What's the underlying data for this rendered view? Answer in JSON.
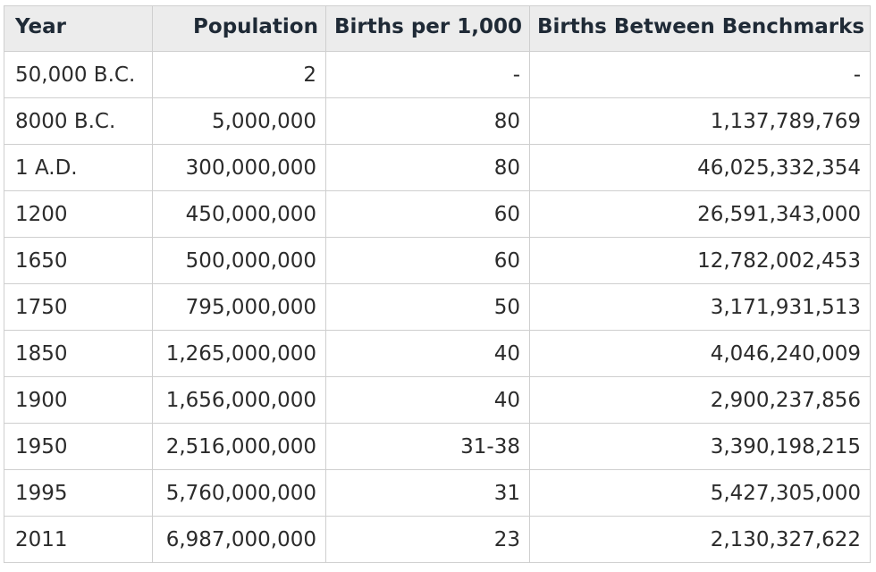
{
  "table": {
    "headers": [
      "Year",
      "Population",
      "Births per 1,000",
      "Births Between Benchmarks"
    ],
    "rows": [
      [
        "50,000 B.C.",
        "2",
        "-",
        "-"
      ],
      [
        "8000 B.C.",
        "5,000,000",
        "80",
        "1,137,789,769"
      ],
      [
        "1 A.D.",
        "300,000,000",
        "80",
        "46,025,332,354"
      ],
      [
        "1200",
        "450,000,000",
        "60",
        "26,591,343,000"
      ],
      [
        "1650",
        "500,000,000",
        "60",
        "12,782,002,453"
      ],
      [
        "1750",
        "795,000,000",
        "50",
        "3,171,931,513"
      ],
      [
        "1850",
        "1,265,000,000",
        "40",
        "4,046,240,009"
      ],
      [
        "1900",
        "1,656,000,000",
        "40",
        "2,900,237,856"
      ],
      [
        "1950",
        "2,516,000,000",
        "31-38",
        "3,390,198,215"
      ],
      [
        "1995",
        "5,760,000,000",
        "31",
        "5,427,305,000"
      ],
      [
        "2011",
        "6,987,000,000",
        "23",
        "2,130,327,622"
      ]
    ]
  },
  "colors": {
    "header_background": "#ececec",
    "border": "#cfcfcf",
    "text": "#2b2b2b",
    "header_text": "#1f2a36"
  }
}
